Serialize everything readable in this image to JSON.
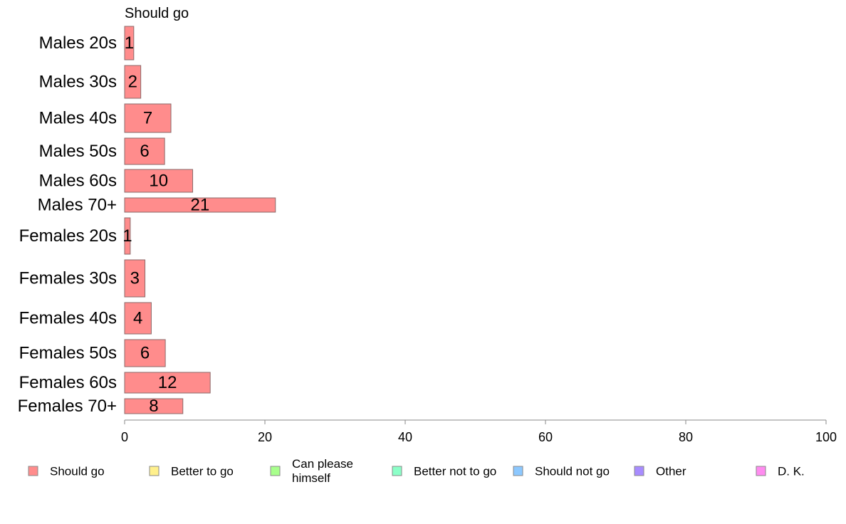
{
  "chart_data": {
    "type": "bar",
    "orientation": "horizontal",
    "title": "Should go",
    "categories": [
      "Males 20s",
      "Males 30s",
      "Males 40s",
      "Males 50s",
      "Males 60s",
      "Males 70+",
      "Females 20s",
      "Females 30s",
      "Females 40s",
      "Females 50s",
      "Females 60s",
      "Females 70+"
    ],
    "series": [
      {
        "name": "Should go",
        "color": "#ff8c8c",
        "values": [
          1.3,
          2.3,
          6.6,
          5.7,
          9.7,
          21.5,
          0.8,
          2.9,
          3.8,
          5.8,
          12.2,
          8.3
        ],
        "labels": [
          "1",
          "2",
          "7",
          "6",
          "10",
          "21",
          "1",
          "3",
          "4",
          "6",
          "12",
          "8"
        ]
      }
    ],
    "xlim": [
      0,
      100
    ],
    "xticks": [
      "0",
      "20",
      "40",
      "60",
      "80",
      "100"
    ],
    "xtick_values": [
      0,
      20,
      40,
      60,
      80,
      100
    ],
    "grid": false,
    "legend_position": "bottom",
    "legend": [
      {
        "name": "Should go",
        "color": "#ff8c8c"
      },
      {
        "name": "Better to go",
        "color": "#fff08c"
      },
      {
        "name": "Can please himself",
        "color": "#a8ff8c"
      },
      {
        "name": "Better not to go",
        "color": "#8cffc8"
      },
      {
        "name": "Should not go",
        "color": "#8cc8ff"
      },
      {
        "name": "Other",
        "color": "#a88cff"
      },
      {
        "name": "D. K.",
        "color": "#ff8cf0"
      }
    ]
  }
}
